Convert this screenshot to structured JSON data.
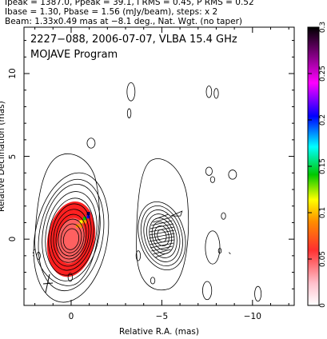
{
  "header": {
    "line1": "Ipeak = 1387.0, Ppeak = 39.1, I RMS = 0.45, P RMS = 0.52",
    "line2": "Ibase = 1.30, Pbase = 1.56 (mJy/beam), steps: x 2",
    "line3": "Beam: 1.33x0.49 mas at −8.1 deg., Nat. Wgt. (no taper)"
  },
  "plot": {
    "title_line1": "2227−088, 2006-07-07, VLBA 15.4 GHz",
    "title_line2": "MOJAVE Program"
  },
  "chart_data": {
    "type": "heatmap",
    "xlabel": "Relative R.A. (mas)",
    "ylabel": "Relative Declination (mas)",
    "xlim": [
      2.6,
      -12.3
    ],
    "ylim": [
      -4.0,
      12.8
    ],
    "x_ticks": [
      0,
      -5,
      -10
    ],
    "x_tick_labels": [
      "0",
      "−5",
      "−10"
    ],
    "y_ticks": [
      0,
      5,
      10
    ],
    "y_tick_labels": [
      "0",
      "5",
      "10"
    ],
    "colorbar": {
      "range": [
        0,
        0.3
      ],
      "ticks": [
        0,
        0.05,
        0.1,
        0.15,
        0.2,
        0.25,
        0.3
      ],
      "tick_labels": [
        "0",
        "0.05",
        "0.1",
        "0.15",
        "0.2",
        "0.25",
        "0.3"
      ],
      "colors": [
        "#ffffff",
        "#ffb0c0",
        "#ff4040",
        "#ff9900",
        "#ffff00",
        "#00cc00",
        "#00ffff",
        "#0000ff",
        "#ff00ff",
        "#000000"
      ]
    },
    "core_position": [
      0,
      0
    ],
    "jet_component_position": [
      -5.0,
      0.2
    ],
    "contour_levels_mJy_per_beam": [
      1.3,
      2.6,
      5.2,
      10.4,
      20.8,
      41.6,
      83.2,
      166.4,
      332.8,
      665.6,
      1331.2
    ],
    "beam": {
      "major_mas": 1.33,
      "minor_mas": 0.49,
      "pa_deg": -8.1
    }
  }
}
